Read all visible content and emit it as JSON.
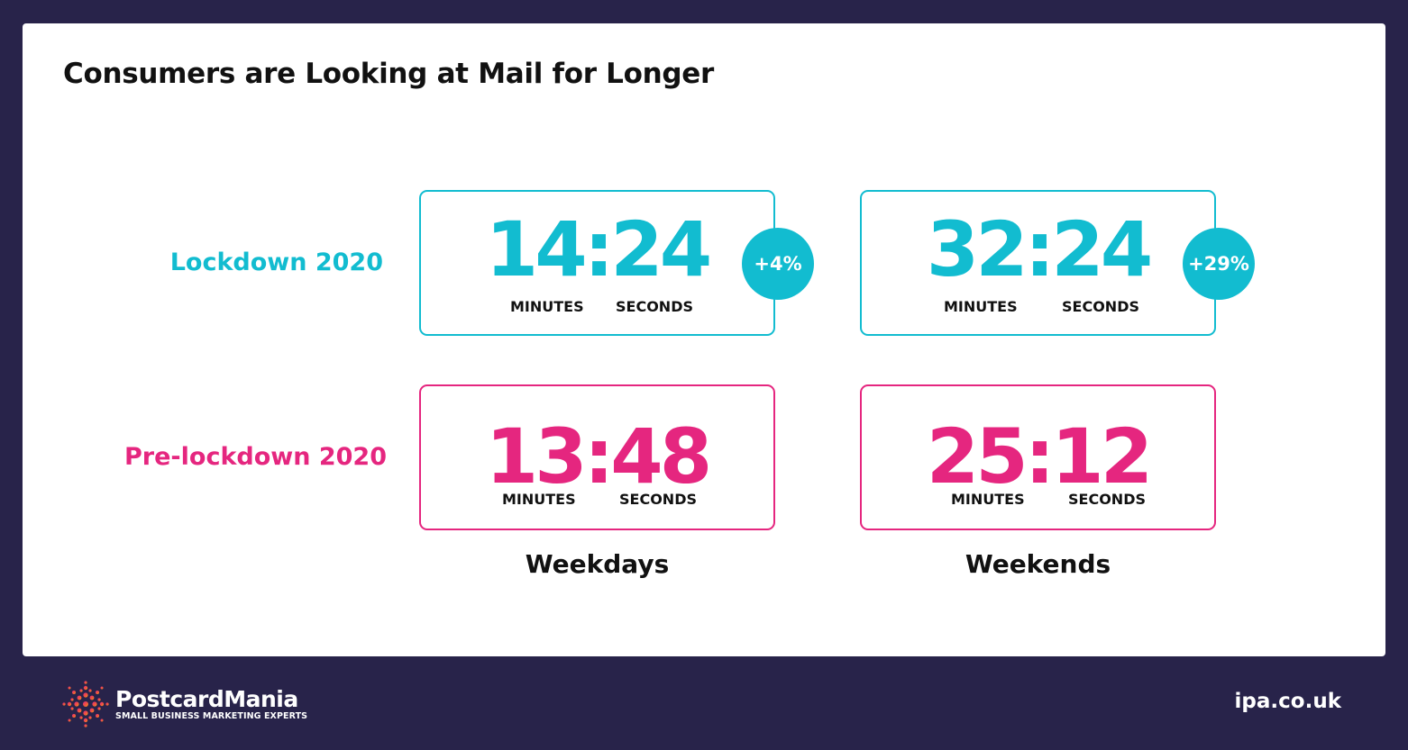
{
  "title": "Consumers are Looking at Mail for Longer",
  "rows": {
    "lockdown": "Lockdown 2020",
    "pre_lockdown": "Pre-lockdown 2020"
  },
  "columns": {
    "weekdays": "Weekdays",
    "weekends": "Weekends"
  },
  "units": {
    "minutes": "MINUTES",
    "seconds": "SECONDS"
  },
  "values": {
    "lockdown_weekdays": "14:24",
    "lockdown_weekends": "32:24",
    "pre_weekdays": "13:48",
    "pre_weekends": "25:12"
  },
  "badges": {
    "weekdays": "+4%",
    "weekends": "+29%"
  },
  "footer": {
    "brand": "PostcardMania",
    "tagline": "SMALL BUSINESS MARKETING EXPERTS",
    "site": "ipa.co.uk"
  },
  "colors": {
    "background": "#28234a",
    "teal": "#12bcd0",
    "pink": "#e5267f"
  }
}
